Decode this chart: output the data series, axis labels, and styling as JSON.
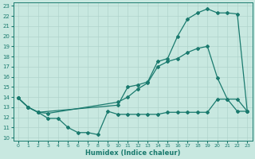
{
  "line1_x": [
    0,
    1,
    2,
    10,
    11,
    12,
    13,
    14,
    15,
    16,
    17,
    18,
    19,
    20,
    21,
    22,
    23
  ],
  "line1_y": [
    13.9,
    13.0,
    12.5,
    13.2,
    15.0,
    15.2,
    15.5,
    17.5,
    17.8,
    20.0,
    21.7,
    22.3,
    22.7,
    22.3,
    22.3,
    22.2,
    12.6
  ],
  "line2_x": [
    0,
    1,
    2,
    3,
    10,
    11,
    12,
    13,
    14,
    15,
    16,
    17,
    18,
    19,
    20,
    21,
    22,
    23
  ],
  "line2_y": [
    13.9,
    13.0,
    12.5,
    12.4,
    13.5,
    14.0,
    14.8,
    15.4,
    17.0,
    17.5,
    17.8,
    18.4,
    18.8,
    19.0,
    15.9,
    13.8,
    13.8,
    12.6
  ],
  "line3_x": [
    0,
    1,
    2,
    3,
    4,
    5,
    6,
    7,
    8,
    9,
    10,
    11,
    12,
    13,
    14,
    15,
    16,
    17,
    18,
    19,
    20,
    21,
    22,
    23
  ],
  "line3_y": [
    13.9,
    13.0,
    12.5,
    11.9,
    11.9,
    11.0,
    10.5,
    10.5,
    10.3,
    12.6,
    12.3,
    12.3,
    12.3,
    12.3,
    12.3,
    12.5,
    12.5,
    12.5,
    12.5,
    12.5,
    13.8,
    13.8,
    12.6,
    12.6
  ],
  "color": "#1a7a6e",
  "bg_color": "#c8e8e0",
  "grid_color": "#b0d4cc",
  "xlabel": "Humidex (Indice chaleur)",
  "xlim_min": -0.5,
  "xlim_max": 23.5,
  "ylim_min": 9.7,
  "ylim_max": 23.3,
  "xticks": [
    0,
    1,
    2,
    3,
    4,
    5,
    6,
    7,
    8,
    9,
    10,
    11,
    12,
    13,
    14,
    15,
    16,
    17,
    18,
    19,
    20,
    21,
    22,
    23
  ],
  "yticks": [
    10,
    11,
    12,
    13,
    14,
    15,
    16,
    17,
    18,
    19,
    20,
    21,
    22,
    23
  ],
  "marker": "D",
  "markersize": 2.0,
  "linewidth": 0.9
}
